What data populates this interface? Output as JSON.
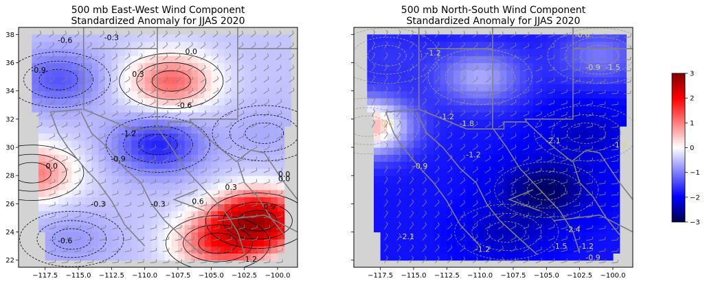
{
  "colors": {
    "land": "#d3d3d3",
    "barb": "#808080",
    "border": "#808080",
    "left_contour": "#000000",
    "right_contour": "#a0a080",
    "right_label": "#d8d870",
    "left_label": "#000000"
  },
  "chart_data": [
    {
      "type": "heatmap",
      "title_line1": "500 mb East-West Wind Component",
      "title_line2": "Standardized Anomaly for JJAS 2020",
      "x_ticks": [
        "−117.5",
        "−115.0",
        "−112.5",
        "−110.0",
        "−107.5",
        "−105.0",
        "−102.5",
        "−100.0"
      ],
      "y_ticks": [
        "22",
        "24",
        "26",
        "28",
        "30",
        "32",
        "34",
        "36",
        "38"
      ],
      "xlim": [
        -119.5,
        -98.5
      ],
      "ylim": [
        21.5,
        38.5
      ],
      "contour_labels": [
        "-0.6",
        "-0.3",
        "0.0",
        "-0.9",
        "0.3",
        "-0.6",
        "-1.2",
        "-0.9",
        "0.0",
        "-0.3",
        "0.0",
        "0.3",
        "0.6",
        "0.9",
        "-0.3",
        "-0.6",
        "1.2",
        "0.0"
      ],
      "anomalies": [
        {
          "lon": -108,
          "lat": 34.7,
          "value": 0.9
        },
        {
          "lon": -109,
          "lat": 30.2,
          "value": -1.3
        },
        {
          "lon": -116.5,
          "lat": 34.8,
          "value": -1.0
        },
        {
          "lon": -118.5,
          "lat": 28.2,
          "value": 0.8
        },
        {
          "lon": -101.5,
          "lat": 24.8,
          "value": 2.4
        },
        {
          "lon": -104.5,
          "lat": 23.2,
          "value": 1.0
        },
        {
          "lon": -115.5,
          "lat": 23.5,
          "value": -0.6
        },
        {
          "lon": -101,
          "lat": 31,
          "value": -0.5
        }
      ],
      "grid": false
    },
    {
      "type": "heatmap",
      "title_line1": "500 mb North-South Wind Component",
      "title_line2": "Standardized Anomaly for JJAS 2020",
      "x_ticks": [
        "−117.5",
        "−115.0",
        "−112.5",
        "−110.0",
        "−107.5",
        "−105.0",
        "−102.5",
        "−100.0"
      ],
      "y_ticks": [],
      "xlim": [
        -119.5,
        -98.5
      ],
      "ylim": [
        21.5,
        38.5
      ],
      "contour_labels": [
        "-1.2",
        "-0.6",
        "-0.9",
        "-1.5",
        "-1.2",
        "-1.8",
        "-2.1",
        "-1.8",
        "-0.9",
        "-1.2",
        "-2.4",
        "-1.5",
        "-1.2",
        "-0.9",
        "-2.1",
        "-1.2",
        "0.0"
      ],
      "anomalies": [
        {
          "lon": -118.5,
          "lat": 31.5,
          "value": 0.5
        },
        {
          "lon": -117,
          "lat": 36.5,
          "value": -1.2
        },
        {
          "lon": -110,
          "lat": 35.0,
          "value": -0.5
        },
        {
          "lon": -105,
          "lat": 27.0,
          "value": -2.8
        },
        {
          "lon": -102,
          "lat": 31.0,
          "value": -2.0
        },
        {
          "lon": -108,
          "lat": 24.0,
          "value": -2.0
        },
        {
          "lon": -101,
          "lat": 36.5,
          "value": -0.8
        }
      ],
      "grid": false
    }
  ],
  "colorbar": {
    "ticks": [
      "3",
      "2",
      "1",
      "0",
      "−1",
      "−2",
      "−3"
    ],
    "min": -3,
    "max": 3,
    "colormap": "seismic"
  }
}
